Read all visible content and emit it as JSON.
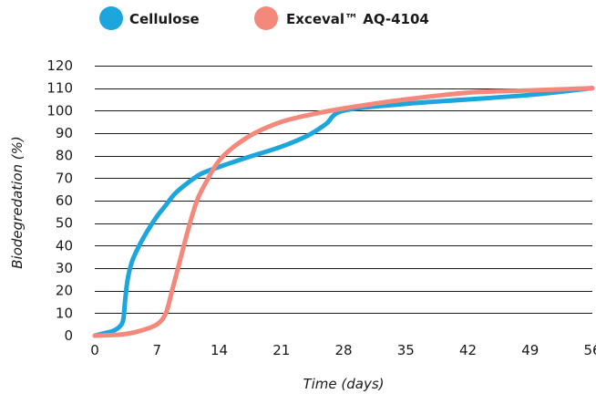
{
  "chart_data": {
    "type": "line",
    "title": "",
    "xlabel": "Time (days)",
    "ylabel": "Biodegredation (%)",
    "xlim": [
      0,
      56
    ],
    "ylim": [
      0,
      120
    ],
    "x_ticks": [
      0,
      7,
      14,
      21,
      28,
      35,
      42,
      49,
      56
    ],
    "y_ticks": [
      0,
      10,
      20,
      30,
      40,
      50,
      60,
      70,
      80,
      90,
      100,
      110,
      120
    ],
    "grid": "horizontal",
    "legend_position": "top-left",
    "series": [
      {
        "name": "Cellulose",
        "color": "#1da6dd",
        "points": [
          [
            0,
            0
          ],
          [
            1,
            1
          ],
          [
            2,
            2
          ],
          [
            2.8,
            4
          ],
          [
            3.2,
            7
          ],
          [
            3.4,
            15
          ],
          [
            3.7,
            25
          ],
          [
            4.2,
            33
          ],
          [
            5,
            40
          ],
          [
            6,
            47
          ],
          [
            7,
            53
          ],
          [
            8,
            58
          ],
          [
            9,
            63
          ],
          [
            10.5,
            68
          ],
          [
            12,
            72
          ],
          [
            14,
            75
          ],
          [
            17,
            79
          ],
          [
            21,
            84
          ],
          [
            24,
            89
          ],
          [
            26,
            94
          ],
          [
            28,
            100
          ],
          [
            35,
            103
          ],
          [
            42,
            105
          ],
          [
            49,
            107
          ],
          [
            56,
            110
          ]
        ]
      },
      {
        "name": "Exceval™ AQ-4104",
        "color": "#f4887a",
        "points": [
          [
            0,
            0
          ],
          [
            3,
            0.5
          ],
          [
            5,
            2
          ],
          [
            7,
            5
          ],
          [
            8,
            10
          ],
          [
            8.7,
            20
          ],
          [
            9.5,
            32
          ],
          [
            10.5,
            47
          ],
          [
            11.5,
            60
          ],
          [
            12.5,
            68
          ],
          [
            13.5,
            75
          ],
          [
            14.5,
            80
          ],
          [
            16,
            85
          ],
          [
            18,
            90
          ],
          [
            21,
            95
          ],
          [
            24,
            98
          ],
          [
            28,
            101
          ],
          [
            35,
            105
          ],
          [
            42,
            108
          ],
          [
            49,
            109
          ],
          [
            56,
            110
          ]
        ]
      }
    ]
  }
}
